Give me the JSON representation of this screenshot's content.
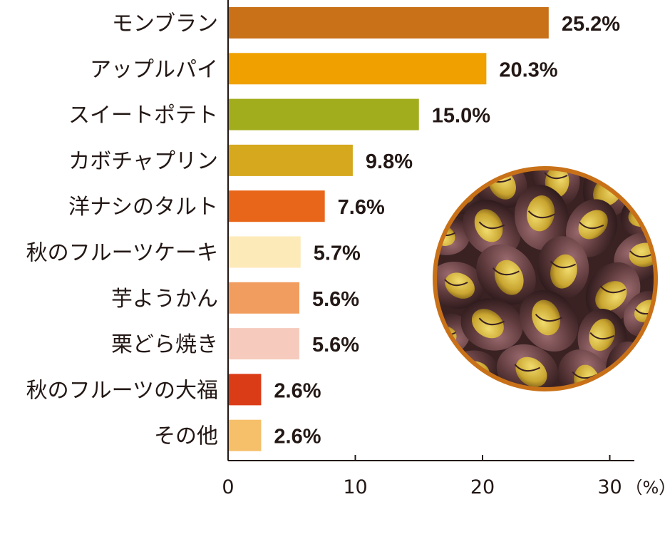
{
  "chart_data": {
    "type": "bar",
    "orientation": "horizontal",
    "categories": [
      "モンブラン",
      "アップルパイ",
      "スイートポテト",
      "カボチャプリン",
      "洋ナシのタルト",
      "秋のフルーツケーキ",
      "芋ようかん",
      "栗どら焼き",
      "秋のフルーツの大福",
      "その他"
    ],
    "values": [
      25.2,
      20.3,
      15.0,
      9.8,
      7.6,
      5.7,
      5.6,
      5.6,
      2.6,
      2.6
    ],
    "value_labels": [
      "25.2%",
      "20.3%",
      "15.0%",
      "9.8%",
      "7.6%",
      "5.7%",
      "5.6%",
      "5.6%",
      "2.6%",
      "2.6%"
    ],
    "colors": [
      "#c87119",
      "#f0a100",
      "#a2ad1d",
      "#d5a81d",
      "#e86619",
      "#fdeab9",
      "#f19d5f",
      "#f6cbbd",
      "#db3c18",
      "#f6bf6a"
    ],
    "xlim": [
      0,
      32
    ],
    "xticks": [
      0,
      10,
      20,
      30
    ],
    "xtick_labels": [
      "0",
      "10",
      "20",
      "30"
    ],
    "x_unit": "（%）",
    "grid": false,
    "legend": "none",
    "photo": "roasted-chestnuts"
  }
}
